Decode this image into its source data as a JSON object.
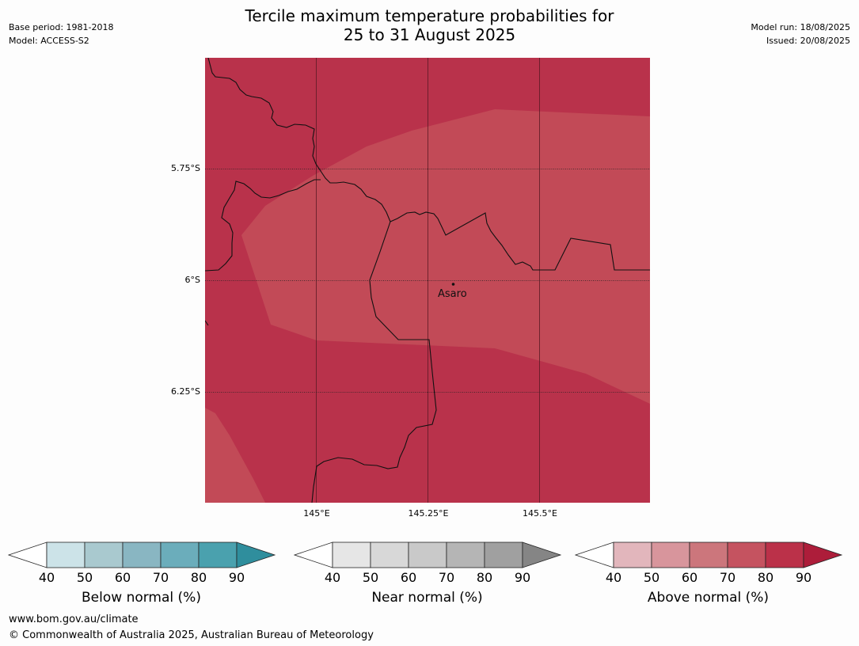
{
  "header": {
    "title_line1": "Tercile maximum temperature probabilities for",
    "title_line2": "25 to 31 August 2025",
    "base_period": "Base period: 1981-2018",
    "model": "Model: ACCESS-S2",
    "model_run": "Model run: 18/08/2025",
    "issued": "Issued: 20/08/2025"
  },
  "map": {
    "place_label": "Asaro",
    "lat_labels": [
      "5.75°S",
      "6°S",
      "6.25°S"
    ],
    "lon_labels": [
      "145°E",
      "145.25°E",
      "145.5°E"
    ],
    "colors": {
      "dominant_category": "Above normal",
      "dominant_probability_band": "80-90%",
      "secondary_probability_band": "70-80%",
      "dark_fill": "#b9324b",
      "light_fill": "#c24a57"
    }
  },
  "colorbars": [
    {
      "label": "Below normal (%)",
      "ticks": [
        "40",
        "50",
        "60",
        "70",
        "80",
        "90"
      ],
      "colors": [
        "#ffffff",
        "#cce3e8",
        "#a9c9cf",
        "#89b6c2",
        "#6badbb",
        "#4aa1ae",
        "#2f8e9d"
      ]
    },
    {
      "label": "Near normal (%)",
      "ticks": [
        "40",
        "50",
        "60",
        "70",
        "80",
        "90"
      ],
      "colors": [
        "#ffffff",
        "#e6e6e6",
        "#d8d8d8",
        "#c9c9c9",
        "#b5b5b5",
        "#a0a0a0",
        "#858585"
      ]
    },
    {
      "label": "Above normal (%)",
      "ticks": [
        "40",
        "50",
        "60",
        "70",
        "80",
        "90"
      ],
      "colors": [
        "#ffffff",
        "#e2b6bc",
        "#d8959c",
        "#cc767c",
        "#c55360",
        "#bb3149",
        "#ad1d3a"
      ]
    }
  ],
  "footer": {
    "url": "www.bom.gov.au/climate",
    "copyright": "© Commonwealth of Australia 2025, Australian Bureau of Meteorology"
  }
}
